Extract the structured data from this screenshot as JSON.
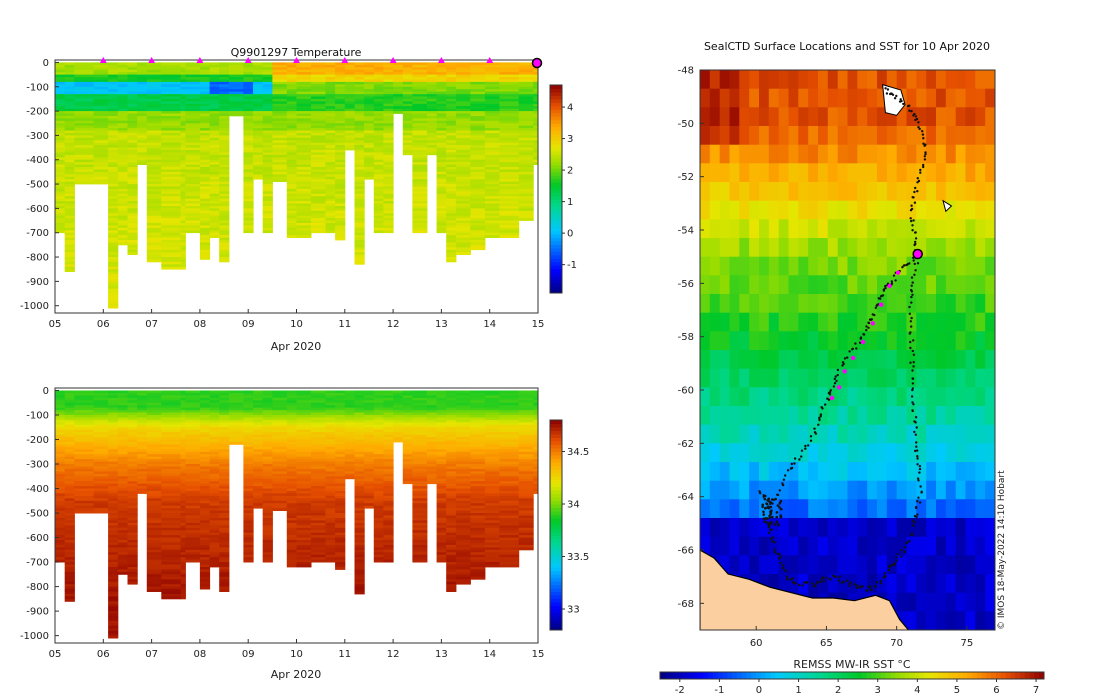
{
  "chart_data": [
    {
      "type": "heatmap",
      "title": "Q9901297  Temperature",
      "xlabel": "Apr 2020",
      "x_tick_labels": [
        "05",
        "06",
        "07",
        "08",
        "09",
        "10",
        "11",
        "12",
        "13",
        "14",
        "15"
      ],
      "y_tick_labels": [
        "0",
        "-100",
        "-200",
        "-300",
        "-400",
        "-500",
        "-600",
        "-700",
        "-800",
        "-900",
        "-1000"
      ],
      "ylim": [
        -1030,
        10
      ],
      "colorbar": {
        "range": [
          -1.9,
          4.7
        ],
        "ticks": [
          "-1",
          "0",
          "1",
          "2",
          "3",
          "4"
        ]
      },
      "profile_markers_days": [
        6,
        7,
        8,
        9,
        10,
        11,
        12,
        13,
        14
      ],
      "current_position_day": 15,
      "marker_color": "#ff00ff",
      "profiles": [
        {
          "t": 5.0,
          "maxd": 700
        },
        {
          "t": 5.2,
          "maxd": 860
        },
        {
          "t": 5.4,
          "maxd": 500
        },
        {
          "t": 5.8,
          "maxd": 500
        },
        {
          "t": 6.1,
          "maxd": 1010
        },
        {
          "t": 6.3,
          "maxd": 750
        },
        {
          "t": 6.5,
          "maxd": 790
        },
        {
          "t": 6.7,
          "maxd": 420
        },
        {
          "t": 6.9,
          "maxd": 820
        },
        {
          "t": 7.2,
          "maxd": 850
        },
        {
          "t": 7.6,
          "maxd": 850
        },
        {
          "t": 7.7,
          "maxd": 700
        },
        {
          "t": 8.0,
          "maxd": 810
        },
        {
          "t": 8.2,
          "maxd": 720
        },
        {
          "t": 8.4,
          "maxd": 820
        },
        {
          "t": 8.6,
          "maxd": 220
        },
        {
          "t": 8.9,
          "maxd": 700
        },
        {
          "t": 9.1,
          "maxd": 480
        },
        {
          "t": 9.3,
          "maxd": 700
        },
        {
          "t": 9.5,
          "maxd": 490
        },
        {
          "t": 9.8,
          "maxd": 720
        },
        {
          "t": 10.0,
          "maxd": 720
        },
        {
          "t": 10.3,
          "maxd": 700
        },
        {
          "t": 10.6,
          "maxd": 700
        },
        {
          "t": 10.8,
          "maxd": 730
        },
        {
          "t": 11.0,
          "maxd": 360
        },
        {
          "t": 11.2,
          "maxd": 830
        },
        {
          "t": 11.4,
          "maxd": 480
        },
        {
          "t": 11.6,
          "maxd": 700
        },
        {
          "t": 11.8,
          "maxd": 700
        },
        {
          "t": 12.0,
          "maxd": 210
        },
        {
          "t": 12.2,
          "maxd": 380
        },
        {
          "t": 12.4,
          "maxd": 700
        },
        {
          "t": 12.7,
          "maxd": 380
        },
        {
          "t": 12.9,
          "maxd": 700
        },
        {
          "t": 13.1,
          "maxd": 820
        },
        {
          "t": 13.3,
          "maxd": 790
        },
        {
          "t": 13.6,
          "maxd": 770
        },
        {
          "t": 13.9,
          "maxd": 720
        },
        {
          "t": 14.2,
          "maxd": 720
        },
        {
          "t": 14.6,
          "maxd": 650
        },
        {
          "t": 14.9,
          "maxd": 420
        }
      ]
    },
    {
      "type": "heatmap",
      "title": "",
      "xlabel": "Apr 2020",
      "x_tick_labels": [
        "05",
        "06",
        "07",
        "08",
        "09",
        "10",
        "11",
        "12",
        "13",
        "14",
        "15"
      ],
      "y_tick_labels": [
        "0",
        "-100",
        "-200",
        "-300",
        "-400",
        "-500",
        "-600",
        "-700",
        "-800",
        "-900",
        "-1000"
      ],
      "ylim": [
        -1030,
        10
      ],
      "colorbar": {
        "range": [
          32.8,
          34.8
        ],
        "ticks": [
          "33",
          "33.5",
          "34",
          "34.5"
        ]
      }
    },
    {
      "type": "heatmap",
      "title": "SealCTD Surface Locations and SST for 10 Apr 2020",
      "xlabel": "",
      "x_tick_labels": [
        "60",
        "65",
        "70",
        "75"
      ],
      "y_tick_labels": [
        "-48",
        "-50",
        "-52",
        "-54",
        "-56",
        "-58",
        "-60",
        "-62",
        "-64",
        "-66",
        "-68"
      ],
      "xlim": [
        56,
        77
      ],
      "ylim": [
        -69,
        -48
      ],
      "colorbar": {
        "label": "REMSS MW-IR SST °C",
        "range": [
          -2.5,
          7.2
        ],
        "ticks": [
          "-2",
          "-1",
          "0",
          "1",
          "2",
          "3",
          "4",
          "5",
          "6",
          "7"
        ]
      },
      "credit": "© IMOS 18-May-2022 14:10 Hobart",
      "land_color": "#fccfa0",
      "track_color": "#111111",
      "profile_color": "#ff00ff",
      "current_position": {
        "lon": 71.5,
        "lat": -54.9
      },
      "track": [
        [
          64.1,
          -67.3
        ],
        [
          64.8,
          -67.1
        ],
        [
          65.6,
          -67.0
        ],
        [
          66.4,
          -67.2
        ],
        [
          67.2,
          -67.35
        ],
        [
          67.9,
          -67.5
        ],
        [
          68.7,
          -67.3
        ],
        [
          69.4,
          -66.8
        ],
        [
          70.0,
          -66.4
        ],
        [
          70.6,
          -65.9
        ],
        [
          71.1,
          -65.3
        ],
        [
          71.4,
          -64.6
        ],
        [
          71.7,
          -63.9
        ],
        [
          71.6,
          -63.0
        ],
        [
          71.4,
          -62.2
        ],
        [
          71.3,
          -61.3
        ],
        [
          71.2,
          -60.4
        ],
        [
          71.1,
          -59.5
        ],
        [
          71.1,
          -58.6
        ],
        [
          71.0,
          -57.6
        ],
        [
          71.0,
          -56.6
        ],
        [
          71.2,
          -55.8
        ],
        [
          71.5,
          -54.9
        ],
        [
          71.3,
          -54.3
        ],
        [
          71.1,
          -53.6
        ],
        [
          71.2,
          -52.8
        ],
        [
          71.5,
          -52.1
        ],
        [
          71.9,
          -51.4
        ],
        [
          72.0,
          -50.7
        ],
        [
          71.6,
          -50.0
        ],
        [
          71.1,
          -49.5
        ],
        [
          70.3,
          -49.1
        ],
        [
          69.6,
          -48.9
        ],
        [
          69.2,
          -48.7
        ]
      ],
      "track_south": [
        [
          60.3,
          -63.8
        ],
        [
          60.9,
          -64.2
        ],
        [
          61.0,
          -64.7
        ],
        [
          61.0,
          -65.4
        ],
        [
          61.4,
          -66.0
        ],
        [
          61.9,
          -66.6
        ],
        [
          62.3,
          -67.1
        ],
        [
          63.0,
          -67.3
        ],
        [
          64.1,
          -67.3
        ]
      ],
      "track_west": [
        [
          60.9,
          -64.5
        ],
        [
          61.6,
          -63.9
        ],
        [
          62.3,
          -63.0
        ],
        [
          63.0,
          -62.6
        ],
        [
          63.9,
          -61.9
        ],
        [
          64.4,
          -61.2
        ],
        [
          64.9,
          -60.5
        ],
        [
          65.4,
          -60.0
        ],
        [
          65.8,
          -59.4
        ],
        [
          66.5,
          -58.7
        ],
        [
          67.3,
          -58.2
        ],
        [
          67.8,
          -57.7
        ],
        [
          68.3,
          -57.3
        ],
        [
          68.7,
          -56.7
        ],
        [
          69.0,
          -56.3
        ],
        [
          69.6,
          -56.0
        ],
        [
          70.1,
          -55.6
        ],
        [
          70.7,
          -55.3
        ],
        [
          71.5,
          -54.9
        ]
      ],
      "profiles_map": [
        [
          65.4,
          -60.3
        ],
        [
          65.9,
          -59.9
        ],
        [
          66.3,
          -59.3
        ],
        [
          66.9,
          -58.8
        ],
        [
          67.6,
          -58.2
        ],
        [
          68.3,
          -57.5
        ],
        [
          68.9,
          -56.8
        ],
        [
          69.5,
          -56.1
        ],
        [
          70.1,
          -55.6
        ],
        [
          71.5,
          -54.9
        ]
      ]
    }
  ]
}
